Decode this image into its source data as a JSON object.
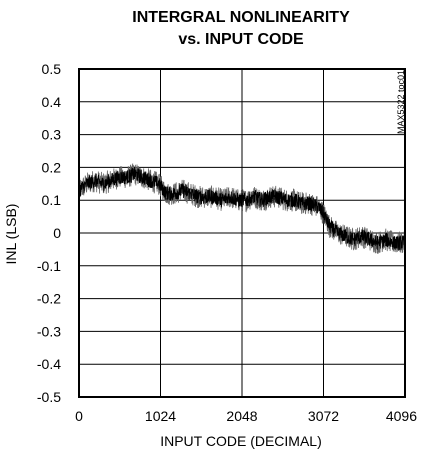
{
  "chart_data": {
    "type": "line",
    "title_line1": "INTERGRAL NONLINEARITY",
    "title_line2": "vs. INPUT CODE",
    "xlabel": "INPUT CODE (DECIMAL)",
    "ylabel": "INL (LSB)",
    "side_code": "MAX5322 toc01",
    "xlim": [
      0,
      4096
    ],
    "ylim": [
      -0.5,
      0.5
    ],
    "x_ticks": [
      0,
      1024,
      2048,
      3072,
      4096
    ],
    "x_tick_labels": [
      "0",
      "1024",
      "2048",
      "3072",
      "4096"
    ],
    "y_ticks": [
      0.5,
      0.4,
      0.3,
      0.2,
      0.1,
      0,
      -0.1,
      -0.2,
      -0.3,
      -0.4,
      -0.5
    ],
    "y_tick_labels": [
      "0.5",
      "0.4",
      "0.3",
      "0.2",
      "0.1",
      "0",
      "-0.1",
      "-0.2",
      "-0.3",
      "-0.4",
      "-0.5"
    ],
    "grid": true,
    "line_color": "#000000",
    "series": [
      {
        "x": [
          0,
          100,
          200,
          300,
          400,
          500,
          600,
          700,
          800,
          900,
          1000,
          1100,
          1200,
          1300,
          1400,
          1500,
          1600,
          1700,
          1800,
          1900,
          2000,
          2100,
          2200,
          2300,
          2400,
          2500,
          2600,
          2700,
          2800,
          2900,
          3000,
          3072,
          3150,
          3250,
          3350,
          3450,
          3550,
          3650,
          3750,
          3850,
          3950,
          4095
        ],
        "y": [
          0.13,
          0.15,
          0.16,
          0.15,
          0.16,
          0.17,
          0.17,
          0.18,
          0.17,
          0.16,
          0.15,
          0.12,
          0.12,
          0.13,
          0.12,
          0.11,
          0.11,
          0.11,
          0.1,
          0.11,
          0.1,
          0.1,
          0.11,
          0.1,
          0.11,
          0.11,
          0.1,
          0.1,
          0.09,
          0.09,
          0.08,
          0.06,
          0.02,
          0.0,
          -0.01,
          -0.02,
          -0.01,
          -0.02,
          -0.03,
          -0.02,
          -0.03,
          -0.03
        ]
      }
    ]
  }
}
